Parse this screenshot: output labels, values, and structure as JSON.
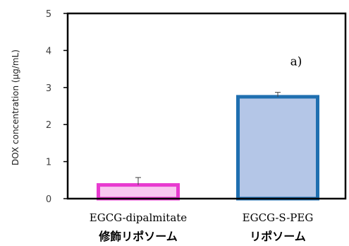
{
  "chart_data": {
    "type": "bar",
    "title": "",
    "xlabel": "",
    "ylabel": "DOX concentration (μg/mL)",
    "ylim": [
      0,
      5
    ],
    "yticks": [
      "0",
      "1",
      "2",
      "3",
      "4",
      "5"
    ],
    "grid": false,
    "legend": "none",
    "categories": [
      {
        "line1": "EGCG-dipalmitate",
        "line2": "修飾リポソーム"
      },
      {
        "line1": "EGCG-S-PEG",
        "line2": "リポソーム"
      }
    ],
    "series": [
      {
        "values": [
          0.37,
          2.75
        ],
        "errors": [
          0.2,
          0.12
        ],
        "fill_colors": [
          "#f8c8f0",
          "#b4c6e7"
        ],
        "edge_colors": [
          "#e83ad0",
          "#1f6fb0"
        ]
      }
    ],
    "annotations": [
      {
        "text": "a)",
        "category_index": 1
      }
    ]
  }
}
